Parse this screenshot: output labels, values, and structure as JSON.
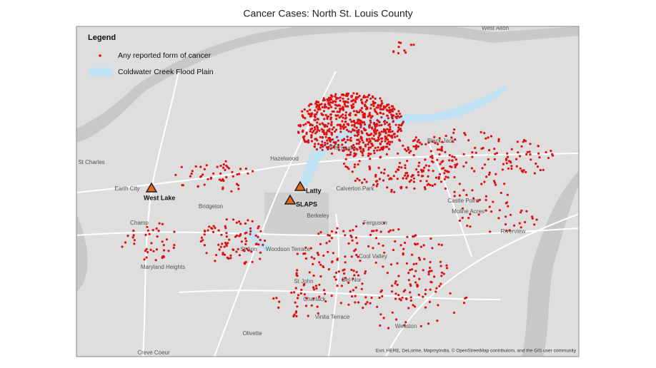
{
  "title": "Cancer Cases:  North St. Louis County",
  "legend": {
    "title": "Legend",
    "items": [
      "Any reported form of cancer",
      "Coldwater Creek Flood Plain"
    ]
  },
  "sites": [
    "West Lake",
    "Latty",
    "SLAPS"
  ],
  "places": [
    "West Alton",
    "St Charles",
    "Earth City",
    "Bridgeton",
    "Champ",
    "Maryland Heights",
    "Hazelwood",
    "Florissant",
    "Black Jack",
    "Castle Point",
    "Moline Acres",
    "Riverview",
    "Calverton Park",
    "Berkeley",
    "Ferguson",
    "Cool Valley",
    "St Ann",
    "Woodson Terrace",
    "St John",
    "Bel-Nor",
    "Charlack",
    "Vinita Terrace",
    "Wellston",
    "Olivette",
    "Creve Coeur"
  ],
  "attribution": "Esri, HERE, DeLorme, MapmyIndia, © OpenStreetMap contributors, and the GIS user community"
}
